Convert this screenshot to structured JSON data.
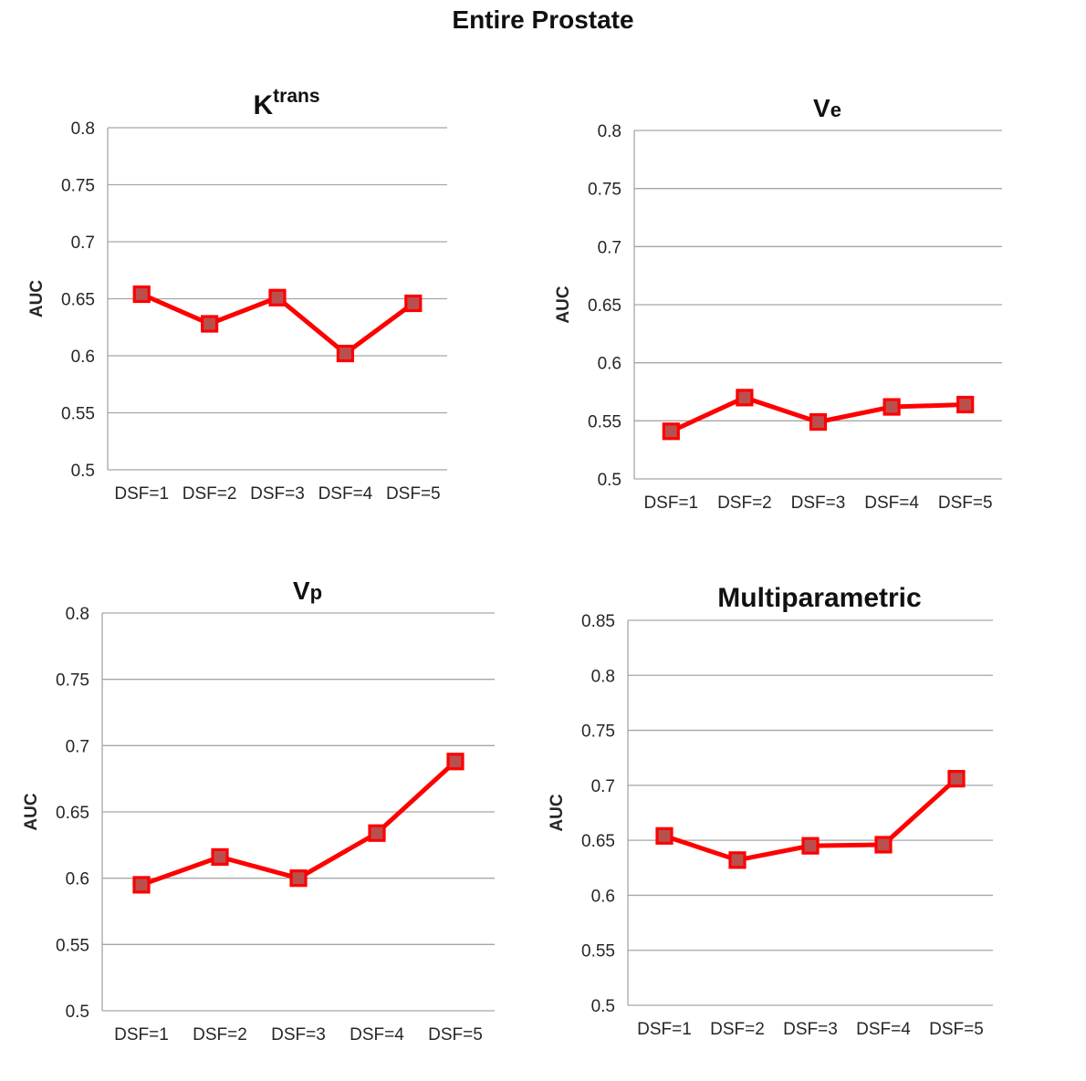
{
  "page_title": "Entire Prostate",
  "colors": {
    "line": "#FE0000",
    "marker_fill": "#B9504E",
    "marker_border": "#FE0000",
    "gridline": "#A6A6A6",
    "axis_line": "#A6A6A6",
    "text": "#262626",
    "title": "#111111"
  },
  "chart_data": [
    {
      "id": "ktrans",
      "type": "line",
      "title_main": "K",
      "title_script": "trans",
      "script_style": "superscript",
      "categories": [
        "DSF=1",
        "DSF=2",
        "DSF=3",
        "DSF=4",
        "DSF=5"
      ],
      "series": [
        {
          "name": "AUC",
          "values": [
            0.654,
            0.628,
            0.651,
            0.602,
            0.646
          ]
        }
      ],
      "xlabel": "",
      "ylabel": "AUC",
      "ylim": [
        0.5,
        0.8
      ],
      "ytick_step": 0.05,
      "grid": true,
      "legend": "none"
    },
    {
      "id": "ve",
      "type": "line",
      "title_main": "V",
      "title_script": "e",
      "script_style": "small",
      "categories": [
        "DSF=1",
        "DSF=2",
        "DSF=3",
        "DSF=4",
        "DSF=5"
      ],
      "series": [
        {
          "name": "AUC",
          "values": [
            0.541,
            0.57,
            0.549,
            0.562,
            0.564
          ]
        }
      ],
      "xlabel": "",
      "ylabel": "AUC",
      "ylim": [
        0.5,
        0.8
      ],
      "ytick_step": 0.05,
      "grid": true,
      "legend": "none"
    },
    {
      "id": "vp",
      "type": "line",
      "title_main": "V",
      "title_script": "p",
      "script_style": "small",
      "categories": [
        "DSF=1",
        "DSF=2",
        "DSF=3",
        "DSF=4",
        "DSF=5"
      ],
      "series": [
        {
          "name": "AUC",
          "values": [
            0.595,
            0.616,
            0.6,
            0.634,
            0.688
          ]
        }
      ],
      "xlabel": "",
      "ylabel": "AUC",
      "ylim": [
        0.5,
        0.8
      ],
      "ytick_step": 0.05,
      "grid": true,
      "legend": "none"
    },
    {
      "id": "multiparametric",
      "type": "line",
      "title_main": "Multiparametric",
      "title_script": "",
      "script_style": "none",
      "categories": [
        "DSF=1",
        "DSF=2",
        "DSF=3",
        "DSF=4",
        "DSF=5"
      ],
      "series": [
        {
          "name": "AUC",
          "values": [
            0.654,
            0.632,
            0.645,
            0.646,
            0.706
          ]
        }
      ],
      "xlabel": "",
      "ylabel": "AUC",
      "ylim": [
        0.5,
        0.85
      ],
      "ytick_step": 0.05,
      "grid": true,
      "legend": "none"
    }
  ]
}
